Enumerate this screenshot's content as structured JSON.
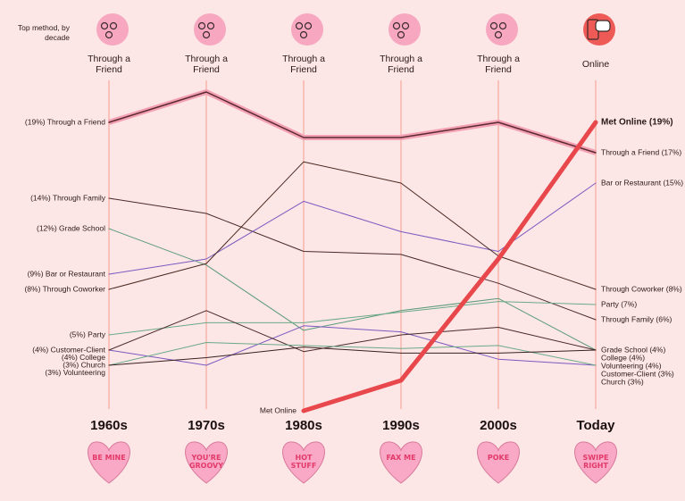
{
  "chart_data": {
    "type": "line",
    "header_note": "Top method, by decade",
    "top_methods": [
      "Through a Friend",
      "Through a Friend",
      "Through a Friend",
      "Through a Friend",
      "Through a Friend",
      "Online"
    ],
    "categories": [
      "1960s",
      "1970s",
      "1980s",
      "1990s",
      "2000s",
      "Today"
    ],
    "hearts": [
      "BE MINE",
      "YOU'RE GROOVY",
      "HOT STUFF",
      "FAX ME",
      "POKE",
      "SWIPE RIGHT"
    ],
    "ylim": [
      0,
      22
    ],
    "series": [
      {
        "name": "Through a Friend",
        "color": "#5a2a2e",
        "style": "glow",
        "values": [
          19,
          21,
          18,
          18,
          19,
          17
        ],
        "start_label": "(19%) Through a Friend",
        "end_label": "Through a Friend (17%)"
      },
      {
        "name": "Through Family",
        "color": "#4a2a2a",
        "values": [
          14,
          13,
          10.5,
          10.3,
          8.4,
          6
        ],
        "start_label": "(14%) Through Family",
        "end_label": "Through Family (6%)"
      },
      {
        "name": "Grade School",
        "color": "#5a9a7a",
        "values": [
          12,
          9.6,
          5.3,
          6.6,
          7.4,
          4
        ],
        "start_label": "(12%) Grade School",
        "end_label": "Grade School (4%)"
      },
      {
        "name": "Bar or Restaurant",
        "color": "#7a5ac0",
        "values": [
          9,
          10,
          13.8,
          11.8,
          10.5,
          15
        ],
        "start_label": "(9%) Bar or Restaurant",
        "end_label": "Bar or Restaurant (15%)"
      },
      {
        "name": "Through Coworker",
        "color": "#4a2a22",
        "values": [
          8,
          9.7,
          16.4,
          15,
          10.2,
          8
        ],
        "start_label": "(8%) Through Coworker",
        "end_label": "Through Coworker (8%)"
      },
      {
        "name": "Party",
        "color": "#6aaa88",
        "values": [
          5,
          5.8,
          5.8,
          6.5,
          7.2,
          7
        ],
        "start_label": "(5%) Party",
        "end_label": "Party (7%)"
      },
      {
        "name": "Customer-Client",
        "color": "#7a5ac0",
        "values": [
          4,
          3,
          5.6,
          5.2,
          3.4,
          3
        ],
        "start_label": "(4%) Customer-Client",
        "end_label": "Customer-Client (3%)"
      },
      {
        "name": "College",
        "color": "#4a2a2a",
        "values": [
          4,
          6.6,
          3.9,
          5,
          5.5,
          4
        ],
        "start_label": "(4%) College",
        "end_label": "College (4%)"
      },
      {
        "name": "Church",
        "color": "#6aaa88",
        "values": [
          3,
          4.5,
          4.3,
          4.1,
          4.3,
          3
        ],
        "start_label": "(3%) Church",
        "end_label": "Church (3%)"
      },
      {
        "name": "Volunteering",
        "color": "#3a2020",
        "values": [
          3,
          3.5,
          4.2,
          3.8,
          3.8,
          4
        ],
        "start_label": "(3%) Volunteering",
        "end_label": "Volunteering (4%)"
      },
      {
        "name": "Met Online",
        "color": "#e8474c",
        "style": "bold",
        "values": [
          null,
          null,
          0,
          2,
          10,
          19
        ],
        "start_label": "Met Online",
        "end_label": "Met Online (19%)"
      }
    ]
  }
}
